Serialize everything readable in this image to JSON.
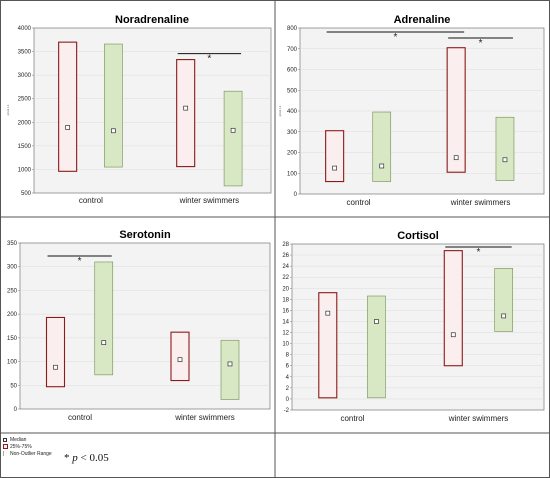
{
  "chart_data": [
    {
      "type": "box",
      "title": "Noradrenaline",
      "ylabel": "pmol·l-1",
      "ylim": [
        500,
        4000
      ],
      "yticks": [
        500,
        1000,
        1500,
        2000,
        2500,
        3000,
        3500,
        4000
      ],
      "categories": [
        "control",
        "winter swimmers"
      ],
      "boxes": [
        {
          "group": "control",
          "series": "red",
          "q1": 960,
          "q3": 3700,
          "median": 1890
        },
        {
          "group": "control",
          "series": "green",
          "q1": 1050,
          "q3": 3660,
          "median": 1820
        },
        {
          "group": "winter swimmers",
          "series": "red",
          "q1": 1060,
          "q3": 3330,
          "median": 2300
        },
        {
          "group": "winter swimmers",
          "series": "green",
          "q1": 650,
          "q3": 2660,
          "median": 1830
        }
      ],
      "significance": [
        {
          "from": "winter swimmers:red",
          "to": "winter swimmers:green",
          "label": "*"
        }
      ]
    },
    {
      "type": "box",
      "title": "Adrenaline",
      "ylabel": "pmol·l-1",
      "ylim": [
        0,
        800
      ],
      "yticks": [
        0,
        100,
        200,
        300,
        400,
        500,
        600,
        700,
        800
      ],
      "categories": [
        "control",
        "winter swimmers"
      ],
      "boxes": [
        {
          "group": "control",
          "series": "red",
          "q1": 60,
          "q3": 305,
          "median": 125
        },
        {
          "group": "control",
          "series": "green",
          "q1": 60,
          "q3": 395,
          "median": 135
        },
        {
          "group": "winter swimmers",
          "series": "red",
          "q1": 105,
          "q3": 705,
          "median": 175
        },
        {
          "group": "winter swimmers",
          "series": "green",
          "q1": 65,
          "q3": 370,
          "median": 165
        }
      ],
      "significance": [
        {
          "from": "control:red",
          "to": "winter swimmers:red",
          "label": "*"
        },
        {
          "from": "winter swimmers:red",
          "to": "winter swimmers:green",
          "label": "*"
        }
      ]
    },
    {
      "type": "box",
      "title": "Serotonin",
      "ylabel": "",
      "ylim": [
        0,
        350
      ],
      "yticks": [
        0,
        50,
        100,
        150,
        200,
        250,
        300,
        350
      ],
      "categories": [
        "control",
        "winter swimmers"
      ],
      "boxes": [
        {
          "group": "control",
          "series": "red",
          "q1": 47,
          "q3": 193,
          "median": 88
        },
        {
          "group": "control",
          "series": "green",
          "q1": 72,
          "q3": 310,
          "median": 140
        },
        {
          "group": "winter swimmers",
          "series": "red",
          "q1": 60,
          "q3": 162,
          "median": 104
        },
        {
          "group": "winter swimmers",
          "series": "green",
          "q1": 20,
          "q3": 145,
          "median": 95
        }
      ],
      "significance": [
        {
          "from": "control:red",
          "to": "control:green",
          "label": "*"
        }
      ]
    },
    {
      "type": "box",
      "title": "Cortisol",
      "ylabel": "",
      "ylim": [
        -2,
        28
      ],
      "yticks": [
        -2,
        0,
        2,
        4,
        6,
        8,
        10,
        12,
        14,
        16,
        18,
        20,
        22,
        24,
        26,
        28
      ],
      "categories": [
        "control",
        "winter swimmers"
      ],
      "boxes": [
        {
          "group": "control",
          "series": "red",
          "q1": 0.2,
          "q3": 19.2,
          "median": 15.5
        },
        {
          "group": "control",
          "series": "green",
          "q1": 0.2,
          "q3": 18.6,
          "median": 14
        },
        {
          "group": "winter swimmers",
          "series": "red",
          "q1": 6,
          "q3": 26.8,
          "median": 11.6
        },
        {
          "group": "winter swimmers",
          "series": "green",
          "q1": 12.2,
          "q3": 23.6,
          "median": 15
        }
      ],
      "significance": [
        {
          "from": "winter swimmers:red",
          "to": "winter swimmers:green",
          "label": "*"
        }
      ]
    }
  ],
  "colors": {
    "red_edge": "#8B1A1A",
    "red_fill": "#fbeeee",
    "green_edge": "#6f8f4f",
    "green_fill": "#d8e8c4",
    "plot_bg": "#f3f3f3",
    "grid": "#dcdcdc"
  },
  "legend": {
    "median": "Median",
    "box": "25%-75%",
    "whisker": "Non-Outlier Range"
  },
  "note": {
    "star": "*",
    "p_italic": "p",
    "p_rest": " < 0.05"
  }
}
